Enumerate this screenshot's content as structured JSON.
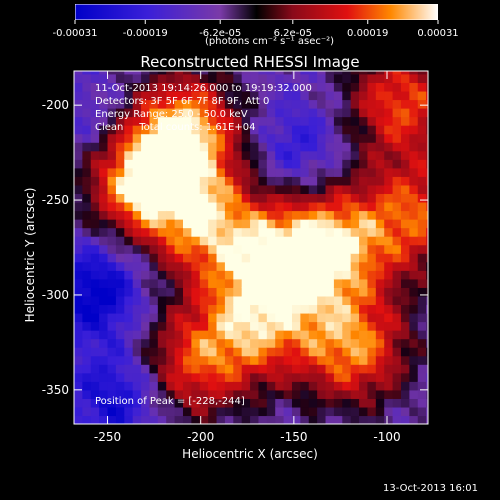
{
  "chart_data": {
    "type": "heatmap",
    "title": "Reconstructed RHESSI Image",
    "xlabel": "Heliocentric X (arcsec)",
    "ylabel": "Heliocentric Y (arcsec)",
    "xlim": [
      -268,
      -78
    ],
    "ylim": [
      -368,
      -182
    ],
    "x_ticks": [
      -250,
      -200,
      -150,
      -100
    ],
    "y_ticks": [
      -200,
      -250,
      -300,
      -350
    ],
    "colorbar": {
      "ticks": [
        "-0.00031",
        "-0.00019",
        "-6.2e-05",
        "6.2e-05",
        "0.00019",
        "0.00031"
      ],
      "unit": "(photons cm⁻² s⁻¹ asec⁻²)",
      "range": [
        -0.00031,
        0.00031
      ]
    },
    "annotations": {
      "time": "11-Oct-2013 19:14:26.000 to 19:19:32.000",
      "detectors": "Detectors: 3F 5F 6F 7F 8F 9F, Att 0",
      "energy": "Energy Range: 25.0 - 50.0 keV",
      "clean": "Clean     Total counts: 1.61E+04",
      "peak": "Position of Peak = [-228,-244]"
    },
    "hotspots": [
      {
        "x": -235,
        "y": -240,
        "intensity": 1.0
      },
      {
        "x": -210,
        "y": -215,
        "intensity": 0.9
      },
      {
        "x": -200,
        "y": -265,
        "intensity": 0.75
      },
      {
        "x": -160,
        "y": -285,
        "intensity": 0.8
      },
      {
        "x": -130,
        "y": -275,
        "intensity": 0.8
      },
      {
        "x": -120,
        "y": -330,
        "intensity": 0.85
      },
      {
        "x": -95,
        "y": -200,
        "intensity": 0.75
      },
      {
        "x": -85,
        "y": -260,
        "intensity": 0.7
      },
      {
        "x": -175,
        "y": -320,
        "intensity": 0.7
      },
      {
        "x": -210,
        "y": -340,
        "intensity": 0.65
      }
    ],
    "coldspots": [
      {
        "x": -258,
        "y": -300,
        "intensity": 0.9
      },
      {
        "x": -245,
        "y": -355,
        "intensity": 0.8
      },
      {
        "x": -150,
        "y": -225,
        "intensity": 0.5
      },
      {
        "x": -255,
        "y": -215,
        "intensity": 0.45
      }
    ]
  },
  "timestamp": "13-Oct-2013 16:01"
}
